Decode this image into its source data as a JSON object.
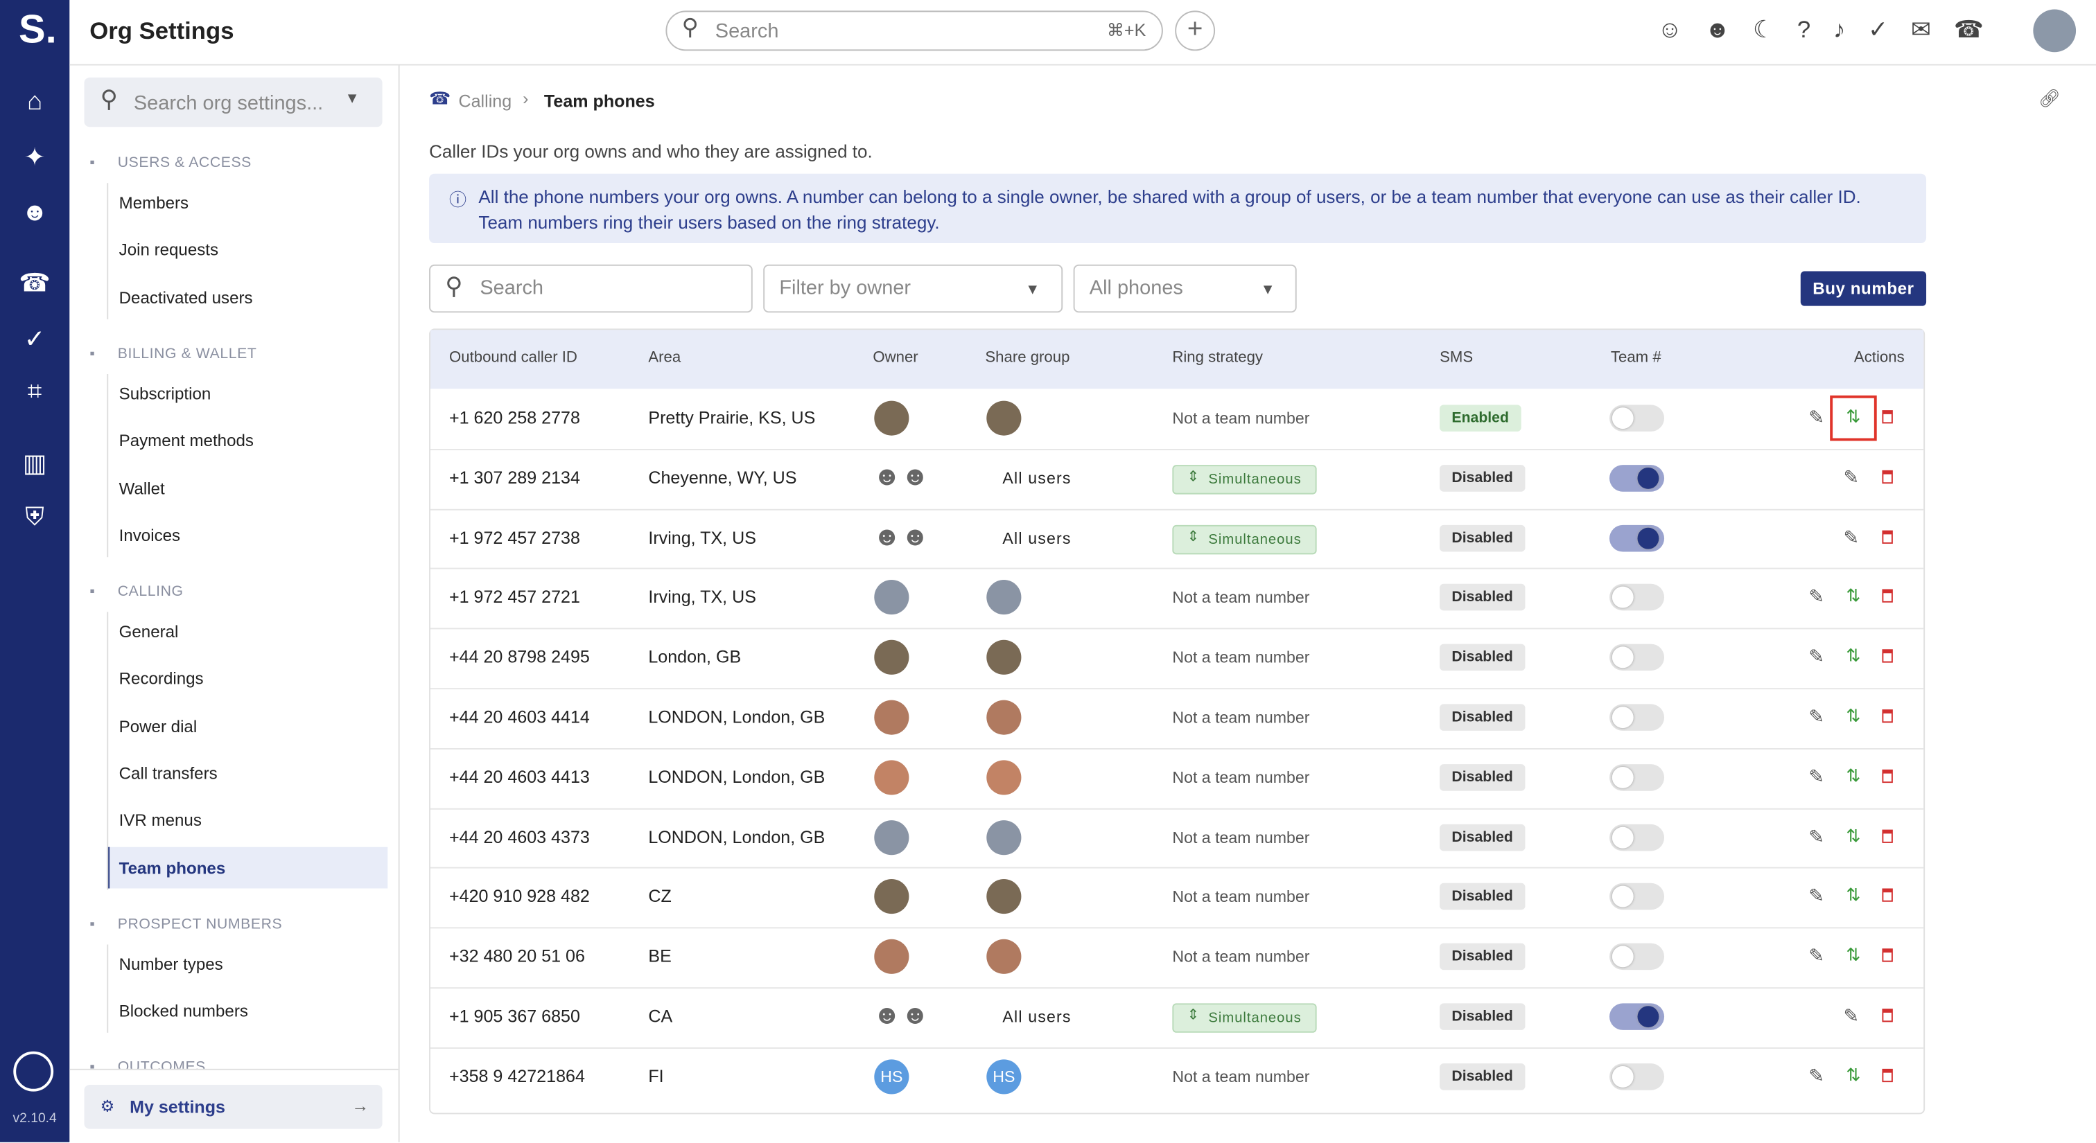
{
  "header": {
    "logo": "S.",
    "title": "Org Settings",
    "search": "Search",
    "shortcut": "⌘+K",
    "version": "v2.10.4"
  },
  "sidebar": {
    "search": "Search org settings...",
    "sections": [
      {
        "title": "USERS & ACCESS",
        "items": [
          "Members",
          "Join requests",
          "Deactivated users"
        ]
      },
      {
        "title": "BILLING & WALLET",
        "items": [
          "Subscription",
          "Payment methods",
          "Wallet",
          "Invoices"
        ]
      },
      {
        "title": "CALLING",
        "items": [
          "General",
          "Recordings",
          "Power dial",
          "Call transfers",
          "IVR menus",
          "Team phones"
        ]
      },
      {
        "title": "PROSPECT NUMBERS",
        "items": [
          "Number types",
          "Blocked numbers"
        ]
      },
      {
        "title": "OUTCOMES",
        "items": []
      }
    ],
    "selected": "Team phones",
    "footer": "My settings"
  },
  "main": {
    "breadcrumb": [
      "Calling",
      "Team phones"
    ],
    "description": "Caller IDs your org owns and who they are assigned to.",
    "info": "All the phone numbers your org owns. A number can belong to a single owner, be shared with a group of users, or be a team number that everyone can use as their caller ID. Team numbers ring their users based on the ring strategy.",
    "filters": {
      "search": "Search",
      "owner": "Filter by owner",
      "phones": "All phones",
      "button": "Buy number"
    }
  },
  "table": {
    "columns": [
      "Outbound caller ID",
      "Area",
      "Owner",
      "Share group",
      "Ring strategy",
      "SMS",
      "Team #",
      "Actions"
    ],
    "rows": [
      {
        "number": "+1 620 258 2778",
        "area": "Pretty Prairie, KS, US",
        "ring": "Not a team number",
        "sms": "Enabled",
        "team": false
      },
      {
        "number": "+1 307 289 2134",
        "area": "Cheyenne, WY, US",
        "share": "All users",
        "ring": "Simultaneous",
        "sms": "Disabled",
        "team": true
      },
      {
        "number": "+1 972 457 2738",
        "area": "Irving, TX, US",
        "share": "All users",
        "ring": "Simultaneous",
        "sms": "Disabled",
        "team": true
      },
      {
        "number": "+1 972 457 2721",
        "area": "Irving, TX, US",
        "ring": "Not a team number",
        "sms": "Disabled",
        "team": false
      },
      {
        "number": "+44 20 8798 2495",
        "area": "London, GB",
        "ring": "Not a team number",
        "sms": "Disabled",
        "team": false
      },
      {
        "number": "+44 20 4603 4414",
        "area": "LONDON, London, GB",
        "ring": "Not a team number",
        "sms": "Disabled",
        "team": false
      },
      {
        "number": "+44 20 4603 4413",
        "area": "LONDON, London, GB",
        "ring": "Not a team number",
        "sms": "Disabled",
        "team": false
      },
      {
        "number": "+44 20 4603 4373",
        "area": "LONDON, London, GB",
        "ring": "Not a team number",
        "sms": "Disabled",
        "team": false
      },
      {
        "number": "+420 910 928 482",
        "area": "CZ",
        "ring": "Not a team number",
        "sms": "Disabled",
        "team": false
      },
      {
        "number": "+32 480 20 51 06",
        "area": "BE",
        "ring": "Not a team number",
        "sms": "Disabled",
        "team": false
      },
      {
        "number": "+1 905 367 6850",
        "area": "CA",
        "share": "All users",
        "ring": "Simultaneous",
        "sms": "Disabled",
        "team": true
      },
      {
        "number": "+358 9 42721864",
        "area": "FI",
        "initials": "HS",
        "ring": "Not a team number",
        "sms": "Disabled",
        "team": false
      }
    ]
  }
}
